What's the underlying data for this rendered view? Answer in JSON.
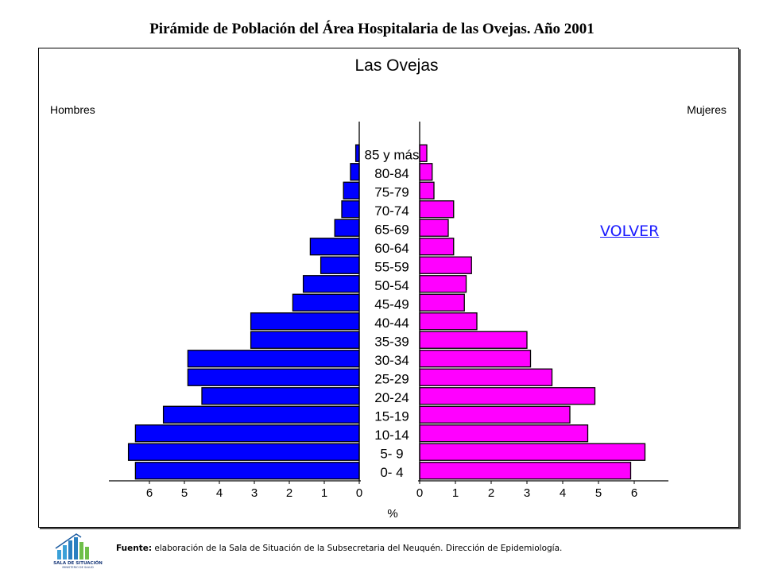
{
  "page": {
    "title": "Pirámide de Población del Área Hospitalaria de las  Ovejas. Año 2001",
    "volver_link": "VOLVER",
    "source_label": "Fuente:",
    "source_text": " elaboración de la Sala de Situación de la Subsecretaria del Neuquén. Dirección de Epidemiología.",
    "logo": {
      "icon": "bar-chart-people-icon",
      "line1": "SALA DE SITUACIÓN",
      "line2": "MINISTERIO DE SALUD"
    }
  },
  "chart_data": {
    "type": "bar",
    "orientation": "horizontal-pyramid",
    "title": "Las Ovejas",
    "left_label": "Hombres",
    "right_label": "Mujeres",
    "xlabel": "%",
    "categories": [
      "0- 4",
      "5- 9",
      "10-14",
      "15-19",
      "20-24",
      "25-29",
      "30-34",
      "35-39",
      "40-44",
      "45-49",
      "50-54",
      "55-59",
      "60-64",
      "65-69",
      "70-74",
      "75-79",
      "80-84",
      "85 y más"
    ],
    "series": [
      {
        "name": "Hombres",
        "color": "#0000ff",
        "values": [
          6.4,
          6.6,
          6.4,
          5.6,
          4.5,
          4.9,
          4.9,
          3.1,
          3.1,
          1.9,
          1.6,
          1.1,
          1.4,
          0.7,
          0.5,
          0.45,
          0.25,
          0.1
        ]
      },
      {
        "name": "Mujeres",
        "color": "#ff00ff",
        "values": [
          5.9,
          6.3,
          4.7,
          4.2,
          4.9,
          3.7,
          3.1,
          3.0,
          1.6,
          1.25,
          1.3,
          1.45,
          0.95,
          0.8,
          0.95,
          0.4,
          0.35,
          0.2
        ]
      }
    ],
    "left_ticks": [
      "6",
      "5",
      "4",
      "3",
      "2",
      "1",
      "0"
    ],
    "right_ticks": [
      "0",
      "1",
      "2",
      "3",
      "4",
      "5",
      "6"
    ],
    "xlim": [
      0,
      6
    ],
    "grid": false
  }
}
